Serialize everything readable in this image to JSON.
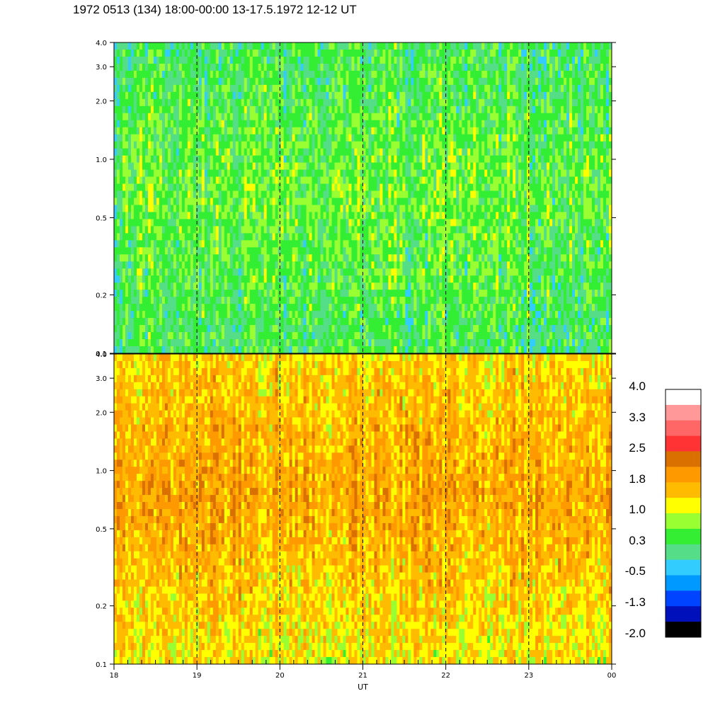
{
  "header": {
    "title": "1972 0513 (134) 18:00-00:00 13-17.5.1972  12-12 UT"
  },
  "chart_data": [
    {
      "type": "heatmap",
      "panel": "upper",
      "xlabel": "",
      "ylabel": "",
      "y_scale": "log",
      "ylim": [
        0.1,
        4.0
      ],
      "y_ticks": [
        "0.1",
        "0.2",
        "0.5",
        "1.0",
        "2.0",
        "3.0",
        "4.0"
      ],
      "x_ticks": [
        "18",
        "19",
        "20",
        "21",
        "22",
        "23",
        "00"
      ],
      "vertical_dashed_lines_at_ut": [
        19,
        20,
        21,
        22,
        23
      ],
      "dominant_levels": {
        "low_frequency": 0.3,
        "mid_frequency": 0.6,
        "high_frequency": 0.3
      },
      "level_range": [
        -0.5,
        1.4
      ]
    },
    {
      "type": "heatmap",
      "panel": "lower",
      "xlabel": "UT",
      "ylabel": "",
      "y_scale": "log",
      "ylim": [
        0.1,
        4.0
      ],
      "y_ticks": [
        "0.1",
        "0.2",
        "0.5",
        "1.0",
        "2.0",
        "3.0",
        "4.0"
      ],
      "x_ticks": [
        "18",
        "19",
        "20",
        "21",
        "22",
        "23",
        "00"
      ],
      "vertical_dashed_lines_at_ut": [
        19,
        20,
        21,
        22,
        23
      ],
      "dominant_levels": {
        "low_frequency": 1.2,
        "mid_frequency": 1.8,
        "high_frequency": 1.4
      },
      "level_range": [
        0.3,
        2.6
      ]
    }
  ],
  "colorbar": {
    "labels": [
      "4.0",
      "3.3",
      "2.5",
      "1.8",
      "1.0",
      "0.3",
      "-0.5",
      "-1.3",
      "-2.0"
    ],
    "colors": [
      "#ffffff",
      "#ff9999",
      "#ff6666",
      "#ff3333",
      "#d97000",
      "#ff9900",
      "#ffbb00",
      "#ffff00",
      "#99ff33",
      "#33ee33",
      "#55dd88",
      "#33ccff",
      "#0099ff",
      "#0044ff",
      "#0011bb",
      "#000000"
    ]
  }
}
